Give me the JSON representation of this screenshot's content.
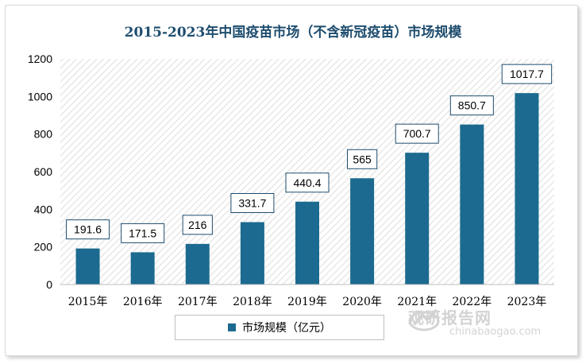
{
  "chart_data": {
    "type": "bar",
    "title": "2015-2023年中国疫苗市场（不含新冠疫苗）市场规模",
    "categories": [
      "2015年",
      "2016年",
      "2017年",
      "2018年",
      "2019年",
      "2020年",
      "2021年",
      "2022年",
      "2023年"
    ],
    "series": [
      {
        "name": "市场规模（亿元）",
        "values": [
          191.6,
          171.5,
          216,
          331.7,
          440.4,
          565,
          700.7,
          850.7,
          1017.7
        ]
      }
    ],
    "data_labels": [
      "191.6",
      "171.5",
      "216",
      "331.7",
      "440.4",
      "565",
      "700.7",
      "850.7",
      "1017.7"
    ],
    "y_ticks": [
      "0",
      "200",
      "400",
      "600",
      "800",
      "1000",
      "1200"
    ],
    "ylim": [
      0,
      1200
    ],
    "xlabel": "",
    "ylabel": "",
    "grid": false,
    "legend_position": "bottom",
    "colors": {
      "bar": "#1c6a8f",
      "title": "#1e4d6e",
      "label_border": "#1e4d6e",
      "plot_hatch": "#e6e6e6"
    }
  },
  "watermark": {
    "cn": "观研报告网",
    "en": "chinabaogao.com"
  }
}
